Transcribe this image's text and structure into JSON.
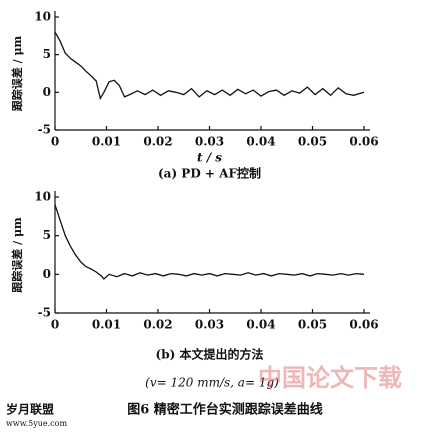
{
  "chart_data": [
    {
      "type": "line",
      "y_label": "跟踪误差 / μm",
      "x_label": "t / s",
      "subtitle": "(a) PD + AF控制",
      "xlim": [
        0,
        0.06
      ],
      "ylim": [
        -5,
        10
      ],
      "xticks": [
        0,
        0.01,
        0.02,
        0.03,
        0.04,
        0.05,
        0.06
      ],
      "yticks": [
        10,
        5,
        0,
        -5
      ],
      "x": [
        0,
        0.001,
        0.002,
        0.003,
        0.004,
        0.005,
        0.006,
        0.007,
        0.008,
        0.0088,
        0.0095,
        0.0105,
        0.0115,
        0.0125,
        0.0135,
        0.0145,
        0.016,
        0.0175,
        0.019,
        0.0205,
        0.022,
        0.0235,
        0.025,
        0.0265,
        0.028,
        0.0295,
        0.031,
        0.0325,
        0.034,
        0.0355,
        0.037,
        0.0385,
        0.04,
        0.0415,
        0.043,
        0.0445,
        0.046,
        0.0475,
        0.049,
        0.0505,
        0.052,
        0.0535,
        0.055,
        0.0565,
        0.058,
        0.06
      ],
      "series": [
        {
          "color": "#111111",
          "values": [
            8,
            6.8,
            5.2,
            4.5,
            4,
            3.5,
            2.8,
            2.2,
            1.5,
            -0.8,
            0,
            1.4,
            1.6,
            0.9,
            -0.6,
            -0.3,
            0.2,
            -0.3,
            0.3,
            -0.4,
            0.2,
            0,
            -0.3,
            0.5,
            -0.6,
            0.2,
            -0.3,
            0.3,
            -0.4,
            0.4,
            -0.2,
            0.3,
            -0.5,
            0.1,
            0.3,
            -0.4,
            0.2,
            -0.1,
            0.7,
            -0.3,
            0.5,
            -0.4,
            0.6,
            -0.2,
            -0.4,
            0
          ]
        }
      ]
    },
    {
      "type": "line",
      "y_label": "跟踪误差 / μm",
      "subtitle": "(b) 本文提出的方法",
      "xlim": [
        0,
        0.06
      ],
      "ylim": [
        -5,
        10
      ],
      "xticks": [
        0,
        0.01,
        0.02,
        0.03,
        0.04,
        0.05,
        0.06
      ],
      "yticks": [
        10,
        5,
        0,
        -5
      ],
      "x": [
        0,
        0.001,
        0.002,
        0.003,
        0.004,
        0.005,
        0.006,
        0.007,
        0.008,
        0.009,
        0.0095,
        0.0105,
        0.012,
        0.0135,
        0.015,
        0.0165,
        0.018,
        0.0195,
        0.021,
        0.0225,
        0.024,
        0.0255,
        0.027,
        0.0285,
        0.03,
        0.0315,
        0.033,
        0.0345,
        0.036,
        0.0375,
        0.039,
        0.0405,
        0.042,
        0.0435,
        0.045,
        0.0465,
        0.048,
        0.0495,
        0.051,
        0.0525,
        0.054,
        0.0555,
        0.057,
        0.0585,
        0.06
      ],
      "series": [
        {
          "color": "#111111",
          "values": [
            9,
            7,
            5,
            3.6,
            2.5,
            1.6,
            1,
            0.7,
            0.3,
            -0.2,
            -0.6,
            0,
            -0.3,
            0.1,
            -0.2,
            0.2,
            -0.1,
            0.1,
            -0.2,
            0.1,
            0,
            -0.2,
            0.1,
            -0.1,
            0.1,
            -0.2,
            0.1,
            0,
            -0.1,
            0.2,
            -0.1,
            0.1,
            -0.2,
            0.1,
            0,
            -0.1,
            0.1,
            -0.2,
            0.1,
            0,
            -0.1,
            0.1,
            -0.1,
            0.1,
            0
          ]
        }
      ]
    }
  ],
  "condition": "(v= 120 mm/s, a= 1g)",
  "caption": "图6  精密工作台实测跟踪误差曲线",
  "logo": {
    "name": "岁月联盟",
    "url": "www.5yue.com"
  },
  "watermark": "中国论文下载"
}
